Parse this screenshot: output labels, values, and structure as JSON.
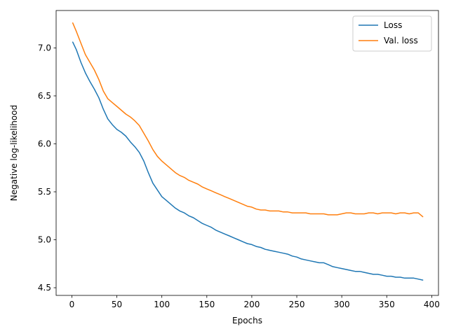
{
  "chart_data": {
    "type": "line",
    "title": "",
    "xlabel": "Epochs",
    "ylabel": "Negative log-likelihood",
    "xlim": [
      -17.5,
      407.5
    ],
    "ylim": [
      4.42,
      7.39
    ],
    "xticks": [
      0,
      50,
      100,
      150,
      200,
      250,
      300,
      350,
      400
    ],
    "yticks": [
      4.5,
      5.0,
      5.5,
      6.0,
      6.5,
      7.0
    ],
    "ytick_labels": [
      "4.5",
      "5.0",
      "5.5",
      "6.0",
      "6.5",
      "7.0"
    ],
    "grid": false,
    "legend_position": "top-right",
    "series": [
      {
        "name": "Loss",
        "color": "#1f77b4",
        "x": [
          1,
          5,
          10,
          15,
          20,
          25,
          30,
          35,
          40,
          45,
          50,
          55,
          60,
          65,
          70,
          75,
          80,
          85,
          90,
          95,
          100,
          105,
          110,
          115,
          120,
          125,
          130,
          135,
          140,
          145,
          150,
          155,
          160,
          165,
          170,
          175,
          180,
          185,
          190,
          195,
          200,
          205,
          210,
          215,
          220,
          225,
          230,
          235,
          240,
          245,
          250,
          255,
          260,
          265,
          270,
          275,
          280,
          285,
          290,
          295,
          300,
          305,
          310,
          315,
          320,
          325,
          330,
          335,
          340,
          345,
          350,
          355,
          360,
          365,
          370,
          375,
          380,
          385,
          390
        ],
        "values": [
          7.06,
          6.98,
          6.85,
          6.74,
          6.65,
          6.57,
          6.48,
          6.36,
          6.26,
          6.2,
          6.15,
          6.12,
          6.08,
          6.02,
          5.97,
          5.91,
          5.82,
          5.7,
          5.59,
          5.52,
          5.45,
          5.41,
          5.37,
          5.33,
          5.3,
          5.28,
          5.25,
          5.23,
          5.2,
          5.17,
          5.15,
          5.13,
          5.1,
          5.08,
          5.06,
          5.04,
          5.02,
          5.0,
          4.98,
          4.96,
          4.95,
          4.93,
          4.92,
          4.9,
          4.89,
          4.88,
          4.87,
          4.86,
          4.85,
          4.83,
          4.82,
          4.8,
          4.79,
          4.78,
          4.77,
          4.76,
          4.76,
          4.74,
          4.72,
          4.71,
          4.7,
          4.69,
          4.68,
          4.67,
          4.67,
          4.66,
          4.65,
          4.64,
          4.64,
          4.63,
          4.62,
          4.62,
          4.61,
          4.61,
          4.6,
          4.6,
          4.6,
          4.59,
          4.58
        ]
      },
      {
        "name": "Val. loss",
        "color": "#ff7f0e",
        "x": [
          1,
          5,
          10,
          15,
          20,
          25,
          30,
          35,
          40,
          45,
          50,
          55,
          60,
          65,
          70,
          75,
          80,
          85,
          90,
          95,
          100,
          105,
          110,
          115,
          120,
          125,
          130,
          135,
          140,
          145,
          150,
          155,
          160,
          165,
          170,
          175,
          180,
          185,
          190,
          195,
          200,
          205,
          210,
          215,
          220,
          225,
          230,
          235,
          240,
          245,
          250,
          255,
          260,
          265,
          270,
          275,
          280,
          285,
          290,
          295,
          300,
          305,
          310,
          315,
          320,
          325,
          330,
          335,
          340,
          345,
          350,
          355,
          360,
          365,
          370,
          375,
          380,
          385,
          390
        ],
        "values": [
          7.26,
          7.17,
          7.05,
          6.93,
          6.85,
          6.77,
          6.67,
          6.55,
          6.47,
          6.43,
          6.39,
          6.35,
          6.31,
          6.28,
          6.24,
          6.19,
          6.11,
          6.03,
          5.94,
          5.87,
          5.82,
          5.78,
          5.74,
          5.7,
          5.67,
          5.65,
          5.62,
          5.6,
          5.58,
          5.55,
          5.53,
          5.51,
          5.49,
          5.47,
          5.45,
          5.43,
          5.41,
          5.39,
          5.37,
          5.35,
          5.34,
          5.32,
          5.31,
          5.31,
          5.3,
          5.3,
          5.3,
          5.29,
          5.29,
          5.28,
          5.28,
          5.28,
          5.28,
          5.27,
          5.27,
          5.27,
          5.27,
          5.26,
          5.26,
          5.26,
          5.27,
          5.28,
          5.28,
          5.27,
          5.27,
          5.27,
          5.28,
          5.28,
          5.27,
          5.28,
          5.28,
          5.28,
          5.27,
          5.28,
          5.28,
          5.27,
          5.28,
          5.28,
          5.24
        ]
      }
    ]
  }
}
